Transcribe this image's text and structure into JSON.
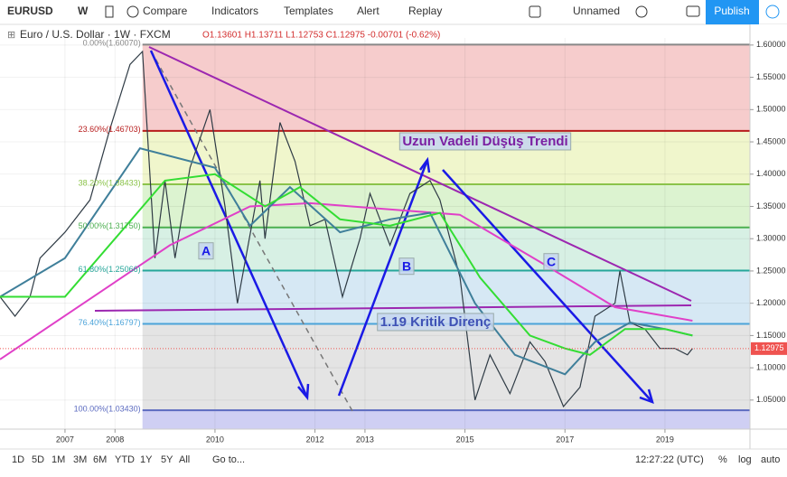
{
  "toolbar": {
    "symbol": "EURUSD",
    "interval": "W",
    "buttons": [
      "Compare",
      "Indicators",
      "Templates",
      "Alert",
      "Replay"
    ],
    "layout_name": "Unnamed",
    "publish": "Publish"
  },
  "chart_data": {
    "type": "line",
    "legend_title": "Euro / U.S. Dollar · 1W · FXCM",
    "ohlc_text": "O1.13601 H1.13711 L1.12753 C1.12975 -0.00701 (-0.62%)",
    "xlim": [
      2005.7,
      2020.7
    ],
    "xticks": [
      2007,
      2008,
      2010,
      2012,
      2013,
      2015,
      2017,
      2019
    ],
    "ylim": [
      1.005,
      1.611
    ],
    "yticks": [
      {
        "value": 1.6,
        "label": "1.60000"
      },
      {
        "value": 1.55,
        "label": "1.55000"
      },
      {
        "value": 1.5,
        "label": "1.50000"
      },
      {
        "value": 1.45,
        "label": "1.45000"
      },
      {
        "value": 1.4,
        "label": "1.40000"
      },
      {
        "value": 1.35,
        "label": "1.35000"
      },
      {
        "value": 1.3,
        "label": "1.30000"
      },
      {
        "value": 1.25,
        "label": "1.25000"
      },
      {
        "value": 1.2,
        "label": "1.20000"
      },
      {
        "value": 1.15,
        "label": "1.15000"
      },
      {
        "value": 1.1,
        "label": "1.10000"
      },
      {
        "value": 1.05,
        "label": "1.05000"
      }
    ],
    "grid": true,
    "last_price": {
      "value": 1.12975,
      "label": "1.12975",
      "color": "#ef5350"
    },
    "fib_levels": [
      {
        "value": 1.6007,
        "label": "0.00%(1.60070)",
        "color": "#888888",
        "band": "#f6cccc"
      },
      {
        "value": 1.46703,
        "label": "23.60%(1.46703)",
        "color": "#b71c1c",
        "band": "#f0f6cc"
      },
      {
        "value": 1.38433,
        "label": "38.20%(1.38433)",
        "color": "#8bc34a",
        "band": "#dcf3d0"
      },
      {
        "value": 1.3175,
        "label": "50.00%(1.31750)",
        "color": "#4caf50",
        "band": "#d7f0e4"
      },
      {
        "value": 1.25066,
        "label": "61.80%(1.25066)",
        "color": "#26a69a",
        "band": "#d6e8f4"
      },
      {
        "value": 1.16797,
        "label": "76.40%(1.16797)",
        "color": "#4ba3d9",
        "band": "#e4e4e4"
      },
      {
        "value": 1.0343,
        "label": "100.00%(1.03430)",
        "color": "#5c6bc0",
        "band": "#cfcff3"
      }
    ],
    "fib_start": 2008.55,
    "series": [
      {
        "color": "#2f3b45",
        "x": [
          2005.7,
          2006.0,
          2006.3,
          2006.5,
          2007.0,
          2007.5,
          2007.9,
          2008.3,
          2008.55,
          2008.8,
          2009.0,
          2009.2,
          2009.5,
          2009.9,
          2010.2,
          2010.45,
          2010.9,
          2011.0,
          2011.3,
          2011.6,
          2011.9,
          2012.2,
          2012.55,
          2012.9,
          2013.1,
          2013.5,
          2013.9,
          2014.3,
          2014.5,
          2014.9,
          2015.2,
          2015.5,
          2015.9,
          2016.3,
          2016.6,
          2016.97,
          2017.3,
          2017.6,
          2018.0,
          2018.1,
          2018.3,
          2018.6,
          2018.9,
          2019.2,
          2019.45,
          2019.55
        ],
        "values": [
          1.21,
          1.18,
          1.21,
          1.27,
          1.31,
          1.36,
          1.47,
          1.57,
          1.59,
          1.27,
          1.39,
          1.27,
          1.41,
          1.5,
          1.35,
          1.2,
          1.39,
          1.3,
          1.48,
          1.42,
          1.32,
          1.33,
          1.21,
          1.3,
          1.37,
          1.29,
          1.37,
          1.39,
          1.36,
          1.24,
          1.05,
          1.12,
          1.06,
          1.14,
          1.11,
          1.04,
          1.07,
          1.18,
          1.2,
          1.25,
          1.17,
          1.16,
          1.13,
          1.13,
          1.12,
          1.13
        ]
      },
      {
        "color": "#e040c8",
        "x": [
          2005.7,
          2009.1,
          2010.7,
          2011.9,
          2014.9,
          2016.5,
          2018.0,
          2019.55
        ],
        "values": [
          1.113,
          1.29,
          1.35,
          1.355,
          1.337,
          1.264,
          1.194,
          1.173
        ]
      },
      {
        "color": "#3f7f9a",
        "x": [
          2005.7,
          2007.0,
          2008.5,
          2010.0,
          2010.7,
          2011.5,
          2012.5,
          2013.5,
          2014.3,
          2015.2,
          2016.0,
          2017.0,
          2017.6,
          2018.3,
          2019.0,
          2019.55
        ],
        "values": [
          1.21,
          1.27,
          1.44,
          1.41,
          1.32,
          1.38,
          1.31,
          1.33,
          1.34,
          1.2,
          1.12,
          1.09,
          1.14,
          1.17,
          1.16,
          1.15
        ]
      },
      {
        "color": "#33dd33",
        "x": [
          2005.7,
          2007.0,
          2008.0,
          2009.0,
          2010.0,
          2011.0,
          2011.7,
          2012.5,
          2013.5,
          2014.5,
          2015.3,
          2016.3,
          2017.0,
          2017.5,
          2018.2,
          2019.0,
          2019.55
        ],
        "values": [
          1.21,
          1.21,
          1.3,
          1.39,
          1.4,
          1.35,
          1.38,
          1.33,
          1.32,
          1.34,
          1.24,
          1.15,
          1.13,
          1.12,
          1.16,
          1.16,
          1.15
        ]
      }
    ],
    "annotations": [
      "Uzun Vadeli Düşüş Trendi",
      "1.19 Kritik Direnç",
      "A",
      "B",
      "C"
    ]
  },
  "bottom_bar": {
    "ranges": [
      "1D",
      "5D",
      "1M",
      "3M",
      "6M",
      "YTD",
      "1Y",
      "5Y",
      "All"
    ],
    "goto": "Go to...",
    "clock": "12:27:22 (UTC)",
    "scale_options": [
      "%",
      "log",
      "auto"
    ]
  }
}
